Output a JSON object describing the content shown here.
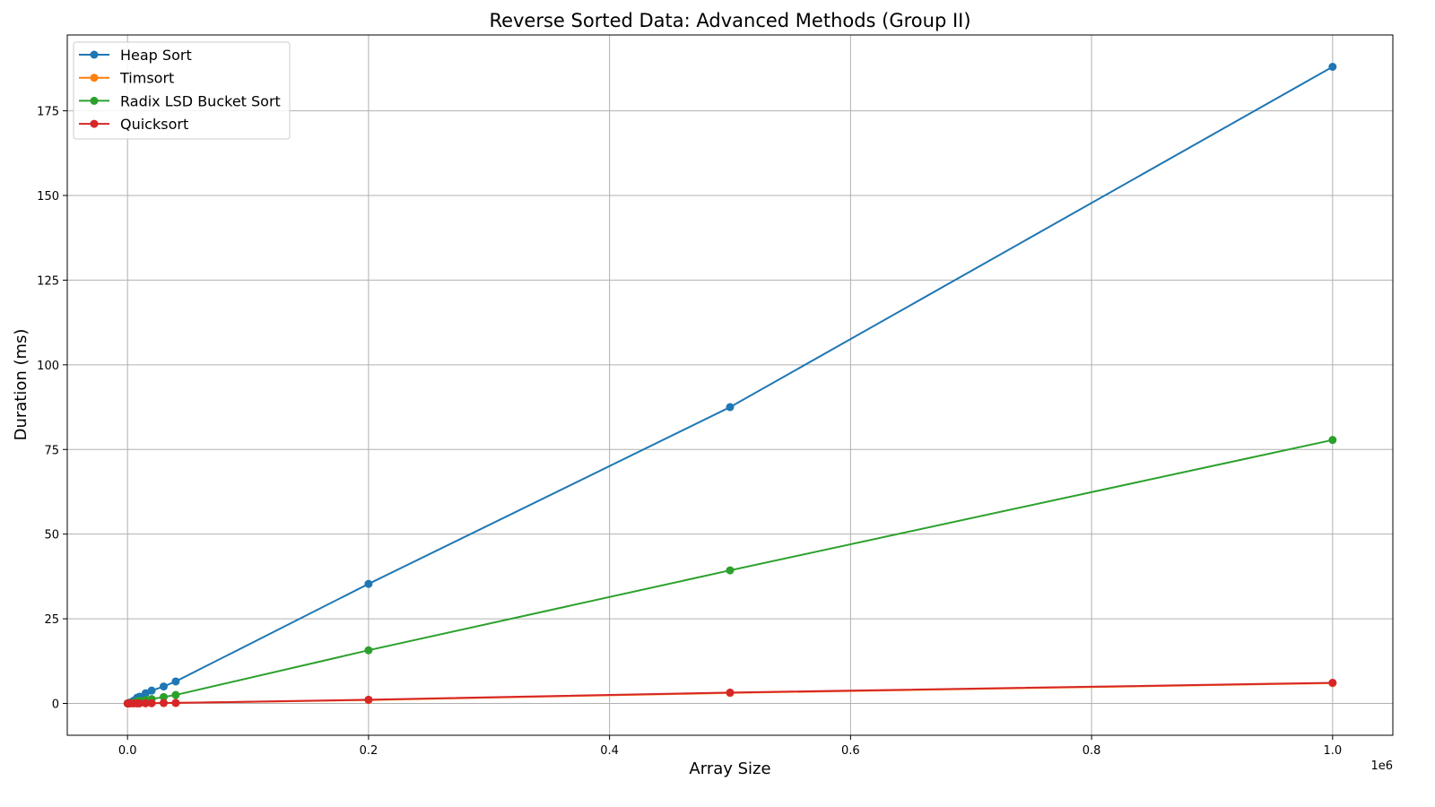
{
  "chart_data": {
    "type": "line",
    "title": "Reverse Sorted Data: Advanced Methods (Group II)",
    "xlabel": "Array Size",
    "ylabel": "Duration (ms)",
    "x_offset_label": "1e6",
    "xlim": [
      -50000,
      1050000
    ],
    "ylim": [
      -9.4,
      197.4
    ],
    "x_tick_values": [
      0,
      200000,
      400000,
      600000,
      800000,
      1000000
    ],
    "x_tick_labels": [
      "0.0",
      "0.2",
      "0.4",
      "0.6",
      "0.8",
      "1.0"
    ],
    "y_tick_values": [
      0,
      25,
      50,
      75,
      100,
      125,
      150,
      175
    ],
    "y_tick_labels": [
      "0",
      "25",
      "50",
      "75",
      "100",
      "125",
      "150",
      "175"
    ],
    "grid": true,
    "legend_position": "top-left",
    "x": [
      100,
      500,
      1000,
      2000,
      5000,
      8000,
      10000,
      15000,
      20000,
      30000,
      40000,
      200000,
      500000,
      1000000
    ],
    "series": [
      {
        "name": "Heap Sort",
        "color": "#1f77b4",
        "values": [
          0.01,
          0.05,
          0.1,
          0.25,
          0.8,
          1.7,
          2.0,
          3.0,
          3.8,
          5.0,
          6.5,
          35.3,
          87.5,
          188.0
        ]
      },
      {
        "name": "Timsort",
        "color": "#ff7f0e",
        "values": [
          0.0,
          0.0,
          0.0,
          0.01,
          0.02,
          0.03,
          0.04,
          0.06,
          0.08,
          0.12,
          0.15,
          1.0,
          3.1,
          6.0
        ]
      },
      {
        "name": "Radix LSD Bucket Sort",
        "color": "#2ca02c",
        "values": [
          0.01,
          0.03,
          0.05,
          0.1,
          0.3,
          0.6,
          0.8,
          1.0,
          1.3,
          1.9,
          2.5,
          15.7,
          39.3,
          77.8
        ]
      },
      {
        "name": "Quicksort",
        "color": "#d62728",
        "values": [
          0.0,
          0.0,
          0.0,
          0.01,
          0.02,
          0.03,
          0.04,
          0.06,
          0.08,
          0.12,
          0.15,
          1.1,
          3.2,
          6.1
        ]
      }
    ]
  }
}
